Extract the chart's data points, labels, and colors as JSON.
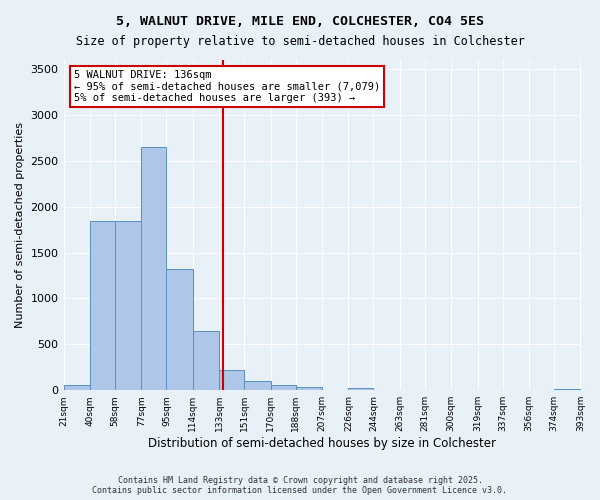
{
  "title_line1": "5, WALNUT DRIVE, MILE END, COLCHESTER, CO4 5ES",
  "title_line2": "Size of property relative to semi-detached houses in Colchester",
  "xlabel": "Distribution of semi-detached houses by size in Colchester",
  "ylabel": "Number of semi-detached properties",
  "bar_color": "#aec6e8",
  "bar_edge_color": "#5a8fc0",
  "background_color": "#e8f0f8",
  "grid_color": "#ffffff",
  "vline_color": "#cc0000",
  "vline_x": 136,
  "annotation_title": "5 WALNUT DRIVE: 136sqm",
  "annotation_line2": "← 95% of semi-detached houses are smaller (7,079)",
  "annotation_line3": "5% of semi-detached houses are larger (393) →",
  "annotation_box_color": "#ffffff",
  "annotation_box_edge": "#cc0000",
  "footer_line1": "Contains HM Land Registry data © Crown copyright and database right 2025.",
  "footer_line2": "Contains public sector information licensed under the Open Government Licence v3.0.",
  "bin_edges": [
    21,
    40,
    58,
    77,
    95,
    114,
    133,
    151,
    170,
    188,
    207,
    226,
    244,
    263,
    281,
    300,
    319,
    337,
    356,
    374,
    393
  ],
  "bin_labels": [
    "21sqm",
    "40sqm",
    "58sqm",
    "77sqm",
    "95sqm",
    "114sqm",
    "133sqm",
    "151sqm",
    "170sqm",
    "188sqm",
    "207sqm",
    "226sqm",
    "244sqm",
    "263sqm",
    "281sqm",
    "300sqm",
    "319sqm",
    "337sqm",
    "356sqm",
    "374sqm",
    "393sqm"
  ],
  "bar_heights": [
    55,
    1850,
    1850,
    2650,
    1320,
    650,
    220,
    105,
    60,
    35,
    0,
    25,
    0,
    0,
    0,
    0,
    0,
    0,
    0,
    15
  ],
  "ylim": [
    0,
    3600
  ],
  "yticks": [
    0,
    500,
    1000,
    1500,
    2000,
    2500,
    3000,
    3500
  ]
}
